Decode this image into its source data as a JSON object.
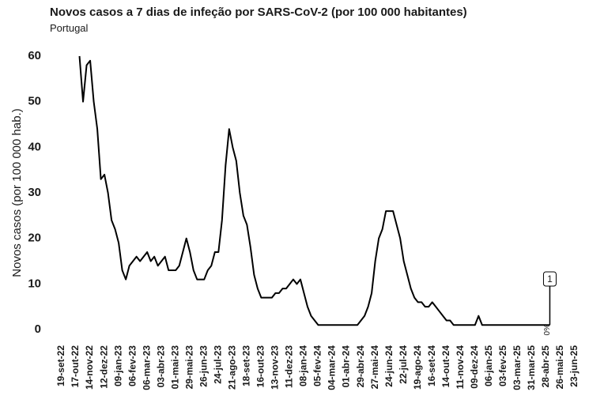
{
  "chart_data": {
    "type": "line",
    "title": "Novos casos a 7 dias de infeção por SARS-CoV-2 (por 100 000 habitantes)",
    "subtitle": "Portugal",
    "y_label": "Novos casos (por 100 000 hab.)",
    "color": "#000000",
    "x": [
      "2022-10-24",
      "2022-10-31",
      "2022-11-07",
      "2022-11-14",
      "2022-11-21",
      "2022-11-28",
      "2022-12-05",
      "2022-12-12",
      "2022-12-19",
      "2022-12-26",
      "2023-01-02",
      "2023-01-09",
      "2023-01-16",
      "2023-01-23",
      "2023-01-30",
      "2023-02-06",
      "2023-02-13",
      "2023-02-20",
      "2023-02-27",
      "2023-03-06",
      "2023-03-13",
      "2023-03-20",
      "2023-03-27",
      "2023-04-03",
      "2023-04-10",
      "2023-04-17",
      "2023-04-24",
      "2023-05-01",
      "2023-05-08",
      "2023-05-15",
      "2023-05-22",
      "2023-05-29",
      "2023-06-05",
      "2023-06-12",
      "2023-06-19",
      "2023-06-26",
      "2023-07-03",
      "2023-07-10",
      "2023-07-17",
      "2023-07-24",
      "2023-07-31",
      "2023-08-07",
      "2023-08-14",
      "2023-08-21",
      "2023-08-28",
      "2023-09-04",
      "2023-09-11",
      "2023-09-18",
      "2023-09-25",
      "2023-10-02",
      "2023-10-09",
      "2023-10-16",
      "2023-10-23",
      "2023-10-30",
      "2023-11-06",
      "2023-11-13",
      "2023-11-20",
      "2023-11-27",
      "2023-12-04",
      "2023-12-11",
      "2023-12-18",
      "2023-12-25",
      "2024-01-01",
      "2024-01-08",
      "2024-01-15",
      "2024-01-22",
      "2024-01-29",
      "2024-02-05",
      "2024-02-12",
      "2024-02-19",
      "2024-02-26",
      "2024-03-04",
      "2024-03-11",
      "2024-03-18",
      "2024-03-25",
      "2024-04-01",
      "2024-04-08",
      "2024-04-15",
      "2024-04-22",
      "2024-04-29",
      "2024-05-06",
      "2024-05-13",
      "2024-05-20",
      "2024-05-27",
      "2024-06-03",
      "2024-06-10",
      "2024-06-17",
      "2024-06-24",
      "2024-07-01",
      "2024-07-08",
      "2024-07-15",
      "2024-07-22",
      "2024-07-29",
      "2024-08-05",
      "2024-08-12",
      "2024-08-19",
      "2024-08-26",
      "2024-09-02",
      "2024-09-09",
      "2024-09-16",
      "2024-09-23",
      "2024-09-30",
      "2024-10-07",
      "2024-10-14",
      "2024-10-21",
      "2024-10-28",
      "2024-11-04",
      "2024-11-11",
      "2024-11-18",
      "2024-11-25",
      "2024-12-02",
      "2024-12-09",
      "2024-12-16",
      "2024-12-23",
      "2024-12-30",
      "2025-01-06",
      "2025-01-13",
      "2025-01-20",
      "2025-01-27",
      "2025-02-03",
      "2025-02-10",
      "2025-02-17",
      "2025-02-24",
      "2025-03-03",
      "2025-03-10",
      "2025-03-17",
      "2025-03-24",
      "2025-03-31",
      "2025-04-07",
      "2025-04-14",
      "2025-04-21",
      "2025-04-28",
      "2025-05-05"
    ],
    "values": [
      60,
      50,
      58,
      59,
      50,
      44,
      33,
      34,
      30,
      24,
      22,
      19,
      13,
      11,
      14,
      15,
      16,
      15,
      16,
      17,
      15,
      16,
      14,
      15,
      16,
      13,
      13,
      13,
      14,
      17,
      20,
      17,
      13,
      11,
      11,
      11,
      13,
      14,
      17,
      17,
      24,
      36,
      44,
      40,
      37,
      30,
      25,
      23,
      18,
      12,
      9,
      7,
      7,
      7,
      7,
      8,
      8,
      9,
      9,
      10,
      11,
      10,
      11,
      8,
      5,
      3,
      2,
      1,
      1,
      1,
      1,
      1,
      1,
      1,
      1,
      1,
      1,
      1,
      1,
      2,
      3,
      5,
      8,
      15,
      20,
      22,
      26,
      26,
      26,
      23,
      20,
      15,
      12,
      9,
      7,
      6,
      6,
      5,
      5,
      6,
      5,
      4,
      3,
      2,
      2,
      1,
      1,
      1,
      1,
      1,
      1,
      1,
      3,
      1,
      1,
      1,
      1,
      1,
      1,
      1,
      1,
      1,
      1,
      1,
      1,
      1,
      1,
      1,
      1,
      1,
      1,
      1,
      1
    ],
    "end_annotation": "1",
    "end_note": "0%",
    "xlim": [
      "2022-09-19",
      "2025-06-23"
    ],
    "ylim": [
      0,
      60
    ],
    "yticks": [
      0,
      10,
      20,
      30,
      40,
      50,
      60
    ],
    "xticks": [
      {
        "value": "2022-09-19",
        "label": "19-set-22"
      },
      {
        "value": "2022-10-17",
        "label": "17-out-22"
      },
      {
        "value": "2022-11-14",
        "label": "14-nov-22"
      },
      {
        "value": "2022-12-12",
        "label": "12-dez-22"
      },
      {
        "value": "2023-01-09",
        "label": "09-jan-23"
      },
      {
        "value": "2023-02-06",
        "label": "06-fev-23"
      },
      {
        "value": "2023-03-06",
        "label": "06-mar-23"
      },
      {
        "value": "2023-04-03",
        "label": "03-abr-23"
      },
      {
        "value": "2023-05-01",
        "label": "01-mai-23"
      },
      {
        "value": "2023-05-29",
        "label": "29-mai-23"
      },
      {
        "value": "2023-06-26",
        "label": "26-jun-23"
      },
      {
        "value": "2023-07-24",
        "label": "24-jul-23"
      },
      {
        "value": "2023-08-21",
        "label": "21-ago-23"
      },
      {
        "value": "2023-09-18",
        "label": "18-set-23"
      },
      {
        "value": "2023-10-16",
        "label": "16-out-23"
      },
      {
        "value": "2023-11-13",
        "label": "13-nov-23"
      },
      {
        "value": "2023-12-11",
        "label": "11-dez-23"
      },
      {
        "value": "2024-01-08",
        "label": "08-jan-24"
      },
      {
        "value": "2024-02-05",
        "label": "05-fev-24"
      },
      {
        "value": "2024-03-04",
        "label": "04-mar-24"
      },
      {
        "value": "2024-04-01",
        "label": "01-abr-24"
      },
      {
        "value": "2024-04-29",
        "label": "29-abr-24"
      },
      {
        "value": "2024-05-27",
        "label": "27-mai-24"
      },
      {
        "value": "2024-06-24",
        "label": "24-jun-24"
      },
      {
        "value": "2024-07-22",
        "label": "22-jul-24"
      },
      {
        "value": "2024-08-19",
        "label": "19-ago-24"
      },
      {
        "value": "2024-09-16",
        "label": "16-set-24"
      },
      {
        "value": "2024-10-14",
        "label": "14-out-24"
      },
      {
        "value": "2024-11-11",
        "label": "11-nov-24"
      },
      {
        "value": "2024-12-09",
        "label": "09-dez-24"
      },
      {
        "value": "2025-01-06",
        "label": "06-jan-25"
      },
      {
        "value": "2025-02-03",
        "label": "03-fev-25"
      },
      {
        "value": "2025-03-03",
        "label": "03-mar-25"
      },
      {
        "value": "2025-03-31",
        "label": "31-mar-25"
      },
      {
        "value": "2025-04-28",
        "label": "28-abr-25"
      },
      {
        "value": "2025-05-26",
        "label": "26-mai-25"
      },
      {
        "value": "2025-06-23",
        "label": "23-jun-25"
      }
    ],
    "grid": false
  }
}
